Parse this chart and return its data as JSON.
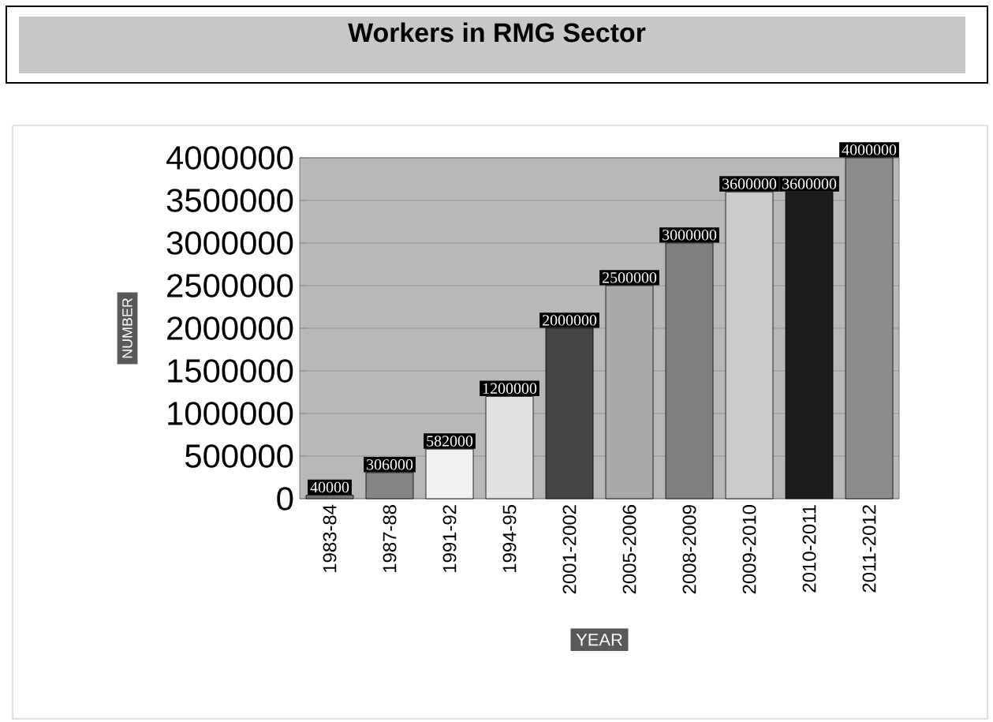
{
  "chart_data": {
    "type": "bar",
    "title": "Workers in RMG Sector",
    "xlabel": "YEAR",
    "ylabel": "NUMBER",
    "categories": [
      "1983-84",
      "1987-88",
      "1991-92",
      "1994-95",
      "2001-2002",
      "2005-2006",
      "2008-2009",
      "2009-2010",
      "2010-2011",
      "2011-2012"
    ],
    "values": [
      40000,
      306000,
      582000,
      1200000,
      2000000,
      2500000,
      3000000,
      3600000,
      3600000,
      4000000
    ],
    "colors": [
      "#777777",
      "#858585",
      "#f2f2f2",
      "#e2e2e2",
      "#454545",
      "#a9a9a9",
      "#808080",
      "#cbcbcb",
      "#1c1c1c",
      "#8c8c8c"
    ],
    "ylim": [
      0,
      4000000
    ],
    "yticks": [
      0,
      500000,
      1000000,
      1500000,
      2000000,
      2500000,
      3000000,
      3500000,
      4000000
    ],
    "grid": "y",
    "data_labels": true
  }
}
